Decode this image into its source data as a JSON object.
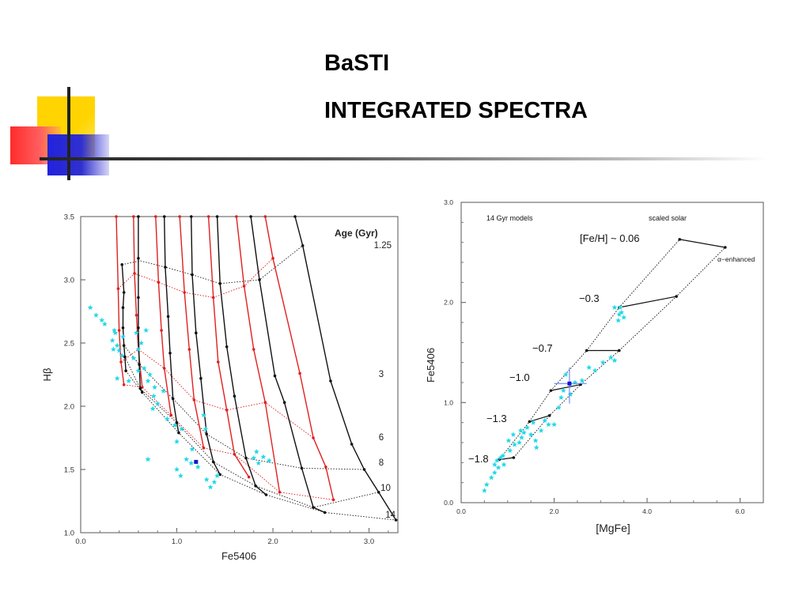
{
  "slide": {
    "title": "BaSTI",
    "subtitle": "INTEGRATED SPECTRA",
    "colors": {
      "yellow": "#ffd400",
      "red": "#ff3030",
      "blue": "#2323d8",
      "rule": "#333333"
    }
  },
  "chart_data": [
    {
      "type": "line",
      "xlabel": "Fe5406",
      "ylabel": "Hβ",
      "xlim": [
        0.0,
        3.3
      ],
      "ylim": [
        1.0,
        3.5
      ],
      "xticks": [
        "0.0",
        "1.0",
        "2.0",
        "3.0"
      ],
      "yticks": [
        "1.0",
        "1.5",
        "2.0",
        "2.5",
        "3.0",
        "3.5"
      ],
      "legend_title": "Age (Gyr)",
      "age_labels": [
        "1.25",
        "3",
        "6",
        "8",
        "10",
        "14"
      ],
      "colors": {
        "black": "#111111",
        "red": "#e02020",
        "obs": "#22d8e8",
        "point": "#1515cc"
      },
      "black_tracks": [
        [
          [
            0.43,
            3.12
          ],
          [
            0.45,
            2.9
          ],
          [
            0.44,
            2.78
          ],
          [
            0.44,
            2.62
          ],
          [
            0.45,
            2.48
          ],
          [
            0.46,
            2.39
          ],
          [
            0.47,
            2.28
          ]
        ],
        [
          [
            0.6,
            3.5
          ],
          [
            0.6,
            3.17
          ],
          [
            0.6,
            2.86
          ],
          [
            0.6,
            2.62
          ],
          [
            0.61,
            2.33
          ],
          [
            0.62,
            2.14
          ],
          [
            0.64,
            2.11
          ]
        ],
        [
          [
            0.87,
            3.5
          ],
          [
            0.88,
            3.1
          ],
          [
            0.91,
            2.71
          ],
          [
            0.93,
            2.42
          ],
          [
            0.96,
            2.06
          ],
          [
            1.0,
            1.87
          ],
          [
            1.02,
            1.79
          ]
        ],
        [
          [
            1.15,
            3.5
          ],
          [
            1.16,
            3.04
          ],
          [
            1.2,
            2.58
          ],
          [
            1.25,
            2.22
          ],
          [
            1.31,
            1.78
          ],
          [
            1.38,
            1.56
          ],
          [
            1.45,
            1.46
          ]
        ],
        [
          [
            1.42,
            3.5
          ],
          [
            1.45,
            2.97
          ],
          [
            1.52,
            2.47
          ],
          [
            1.6,
            2.08
          ],
          [
            1.72,
            1.59
          ],
          [
            1.82,
            1.37
          ],
          [
            1.93,
            1.3
          ]
        ],
        [
          [
            1.77,
            3.5
          ],
          [
            1.86,
            3.0
          ],
          [
            2.02,
            2.24
          ],
          [
            2.12,
            2.03
          ],
          [
            2.3,
            1.51
          ],
          [
            2.42,
            1.2
          ],
          [
            2.54,
            1.16
          ]
        ],
        [
          [
            2.23,
            3.5
          ],
          [
            2.31,
            3.27
          ],
          [
            2.6,
            2.2
          ],
          [
            2.82,
            1.7
          ],
          [
            2.95,
            1.5
          ],
          [
            3.1,
            1.32
          ],
          [
            3.28,
            1.1
          ]
        ]
      ],
      "red_tracks": [
        [
          [
            0.37,
            3.5
          ],
          [
            0.39,
            2.93
          ],
          [
            0.4,
            2.6
          ],
          [
            0.42,
            2.35
          ],
          [
            0.45,
            2.17
          ]
        ],
        [
          [
            0.55,
            3.5
          ],
          [
            0.56,
            3.05
          ],
          [
            0.58,
            2.72
          ],
          [
            0.6,
            2.45
          ],
          [
            0.64,
            2.15
          ]
        ],
        [
          [
            0.78,
            3.5
          ],
          [
            0.81,
            2.98
          ],
          [
            0.84,
            2.6
          ],
          [
            0.87,
            2.3
          ],
          [
            0.94,
            1.93
          ]
        ],
        [
          [
            1.03,
            3.5
          ],
          [
            1.08,
            2.9
          ],
          [
            1.13,
            2.45
          ],
          [
            1.18,
            2.05
          ],
          [
            1.28,
            1.67
          ]
        ],
        [
          [
            1.33,
            3.5
          ],
          [
            1.38,
            2.86
          ],
          [
            1.43,
            2.35
          ],
          [
            1.52,
            1.97
          ],
          [
            1.6,
            1.62
          ],
          [
            1.75,
            1.44
          ]
        ],
        [
          [
            1.62,
            3.5
          ],
          [
            1.7,
            2.95
          ],
          [
            1.8,
            2.45
          ],
          [
            1.92,
            2.03
          ],
          [
            2.07,
            1.32
          ]
        ],
        [
          [
            1.92,
            3.5
          ],
          [
            2.0,
            3.17
          ],
          [
            2.28,
            2.26
          ],
          [
            2.42,
            1.75
          ],
          [
            2.55,
            1.52
          ],
          [
            2.63,
            1.26
          ]
        ]
      ],
      "iso_lines": [
        [
          [
            0.43,
            3.12
          ],
          [
            0.62,
            3.15
          ],
          [
            0.88,
            3.1
          ],
          [
            1.16,
            3.04
          ],
          [
            1.45,
            2.97
          ],
          [
            1.86,
            3.0
          ],
          [
            2.31,
            3.27
          ]
        ],
        [
          [
            0.45,
            2.48
          ],
          [
            0.61,
            2.33
          ],
          [
            0.96,
            2.06
          ],
          [
            1.31,
            1.78
          ],
          [
            1.72,
            1.59
          ],
          [
            2.3,
            1.51
          ],
          [
            2.95,
            1.5
          ]
        ],
        [
          [
            0.46,
            2.39
          ],
          [
            0.62,
            2.14
          ],
          [
            1.0,
            1.87
          ],
          [
            1.38,
            1.56
          ],
          [
            1.82,
            1.37
          ],
          [
            2.42,
            1.2
          ],
          [
            3.1,
            1.32
          ]
        ],
        [
          [
            0.47,
            2.28
          ],
          [
            0.64,
            2.11
          ],
          [
            1.02,
            1.79
          ],
          [
            1.45,
            1.46
          ],
          [
            1.93,
            1.3
          ],
          [
            2.54,
            1.16
          ],
          [
            3.28,
            1.1
          ]
        ],
        [
          [
            0.39,
            2.93
          ],
          [
            0.56,
            3.05
          ],
          [
            0.81,
            2.98
          ],
          [
            1.08,
            2.9
          ],
          [
            1.38,
            2.86
          ],
          [
            1.7,
            2.95
          ],
          [
            2.0,
            3.17
          ]
        ],
        [
          [
            0.42,
            2.35
          ],
          [
            0.6,
            2.45
          ],
          [
            0.87,
            2.3
          ],
          [
            1.18,
            2.05
          ],
          [
            1.52,
            1.97
          ],
          [
            1.92,
            2.03
          ],
          [
            2.42,
            1.75
          ]
        ],
        [
          [
            0.45,
            2.17
          ],
          [
            0.64,
            2.15
          ],
          [
            0.94,
            1.93
          ],
          [
            1.28,
            1.67
          ],
          [
            1.6,
            1.62
          ],
          [
            2.07,
            1.32
          ],
          [
            2.63,
            1.26
          ]
        ]
      ],
      "observations": [
        [
          0.1,
          2.78
        ],
        [
          0.16,
          2.72
        ],
        [
          0.22,
          2.68
        ],
        [
          0.35,
          2.6
        ],
        [
          0.33,
          2.52
        ],
        [
          0.38,
          2.48
        ],
        [
          0.34,
          2.45
        ],
        [
          0.4,
          2.44
        ],
        [
          0.43,
          2.4
        ],
        [
          0.36,
          2.58
        ],
        [
          0.55,
          2.38
        ],
        [
          0.6,
          2.45
        ],
        [
          0.68,
          2.6
        ],
        [
          0.66,
          2.3
        ],
        [
          0.72,
          2.25
        ],
        [
          0.6,
          2.28
        ],
        [
          0.7,
          2.2
        ],
        [
          0.77,
          2.15
        ],
        [
          0.63,
          2.5
        ],
        [
          0.58,
          2.58
        ],
        [
          0.8,
          2.02
        ],
        [
          0.76,
          2.08
        ],
        [
          0.86,
          2.12
        ],
        [
          0.75,
          1.98
        ],
        [
          0.9,
          1.9
        ],
        [
          0.98,
          1.85
        ],
        [
          1.05,
          1.82
        ],
        [
          1.0,
          1.72
        ],
        [
          1.28,
          1.93
        ],
        [
          1.3,
          1.82
        ],
        [
          1.16,
          1.66
        ],
        [
          1.1,
          1.58
        ],
        [
          1.0,
          1.5
        ],
        [
          1.04,
          1.45
        ],
        [
          1.15,
          1.55
        ],
        [
          1.22,
          1.52
        ],
        [
          1.31,
          1.42
        ],
        [
          1.35,
          1.36
        ],
        [
          1.39,
          1.4
        ],
        [
          1.42,
          1.45
        ],
        [
          0.7,
          1.58
        ],
        [
          1.8,
          1.59
        ],
        [
          1.85,
          1.55
        ],
        [
          1.9,
          1.6
        ],
        [
          1.96,
          1.57
        ],
        [
          1.83,
          1.64
        ],
        [
          0.38,
          2.22
        ],
        [
          0.5,
          2.2
        ],
        [
          0.25,
          2.65
        ],
        [
          0.44,
          2.55
        ]
      ],
      "highlight": [
        1.2,
        1.56
      ]
    },
    {
      "type": "line",
      "xlabel": "[MgFe]",
      "ylabel": "Fe5406",
      "xlim": [
        0.0,
        6.5
      ],
      "ylim": [
        0.0,
        3.0
      ],
      "xticks": [
        "0.0",
        "2.0",
        "4.0",
        "6.0"
      ],
      "yticks": [
        "0.0",
        "1.0",
        "2.0",
        "3.0"
      ],
      "annotations": {
        "models": "14 Gyr models",
        "scaled": "scaled solar",
        "alpha": "α−enhanced",
        "feh_main": "[Fe/H] ~ 0.06",
        "feh_values": [
          "−0.3",
          "−0.7",
          "−1.0",
          "−1.3",
          "−1.8"
        ]
      },
      "colors": {
        "line": "#111111",
        "obs": "#22d8e8",
        "point": "#1515cc",
        "errbar": "#5577ff"
      },
      "scaled_solar": [
        [
          0.82,
          0.43
        ],
        [
          1.47,
          0.81
        ],
        [
          1.93,
          1.12
        ],
        [
          2.7,
          1.52
        ],
        [
          3.4,
          1.95
        ],
        [
          4.7,
          2.63
        ]
      ],
      "alpha_enhanced": [
        [
          1.13,
          0.45
        ],
        [
          1.9,
          0.87
        ],
        [
          2.57,
          1.18
        ],
        [
          3.4,
          1.52
        ],
        [
          4.63,
          2.06
        ],
        [
          5.68,
          2.55
        ]
      ],
      "connectors": [
        [
          [
            4.7,
            2.63
          ],
          [
            5.68,
            2.55
          ]
        ],
        [
          [
            3.4,
            1.95
          ],
          [
            4.63,
            2.06
          ]
        ],
        [
          [
            2.7,
            1.52
          ],
          [
            3.4,
            1.52
          ]
        ],
        [
          [
            1.93,
            1.12
          ],
          [
            2.57,
            1.18
          ]
        ],
        [
          [
            1.47,
            0.81
          ],
          [
            1.9,
            0.87
          ]
        ],
        [
          [
            0.82,
            0.43
          ],
          [
            1.13,
            0.45
          ]
        ]
      ],
      "observations": [
        [
          0.5,
          0.12
        ],
        [
          0.55,
          0.18
        ],
        [
          0.65,
          0.25
        ],
        [
          0.72,
          0.3
        ],
        [
          0.8,
          0.35
        ],
        [
          0.77,
          0.42
        ],
        [
          0.85,
          0.45
        ],
        [
          0.92,
          0.38
        ],
        [
          0.72,
          0.38
        ],
        [
          0.9,
          0.47
        ],
        [
          1.05,
          0.52
        ],
        [
          1.15,
          0.58
        ],
        [
          1.25,
          0.6
        ],
        [
          1.3,
          0.65
        ],
        [
          1.35,
          0.7
        ],
        [
          1.42,
          0.75
        ],
        [
          1.5,
          0.68
        ],
        [
          1.55,
          0.8
        ],
        [
          1.62,
          0.55
        ],
        [
          1.72,
          0.72
        ],
        [
          1.8,
          0.82
        ],
        [
          1.88,
          0.78
        ],
        [
          2.0,
          0.78
        ],
        [
          2.1,
          0.95
        ],
        [
          2.15,
          1.05
        ],
        [
          2.2,
          1.12
        ],
        [
          2.25,
          1.28
        ],
        [
          2.35,
          1.08
        ],
        [
          2.45,
          1.2
        ],
        [
          2.6,
          1.22
        ],
        [
          2.75,
          1.35
        ],
        [
          2.88,
          1.32
        ],
        [
          3.05,
          1.4
        ],
        [
          3.22,
          1.45
        ],
        [
          3.3,
          1.42
        ],
        [
          3.38,
          1.82
        ],
        [
          3.4,
          1.88
        ],
        [
          3.42,
          1.95
        ],
        [
          3.45,
          1.9
        ],
        [
          3.5,
          1.85
        ],
        [
          3.3,
          1.95
        ],
        [
          1.12,
          0.68
        ],
        [
          1.28,
          0.72
        ],
        [
          1.6,
          0.62
        ],
        [
          1.02,
          0.62
        ]
      ],
      "highlight": [
        2.33,
        1.19
      ],
      "errbar": {
        "x": [
          2.0,
          2.7
        ],
        "y": [
          0.99,
          1.35
        ]
      }
    }
  ]
}
